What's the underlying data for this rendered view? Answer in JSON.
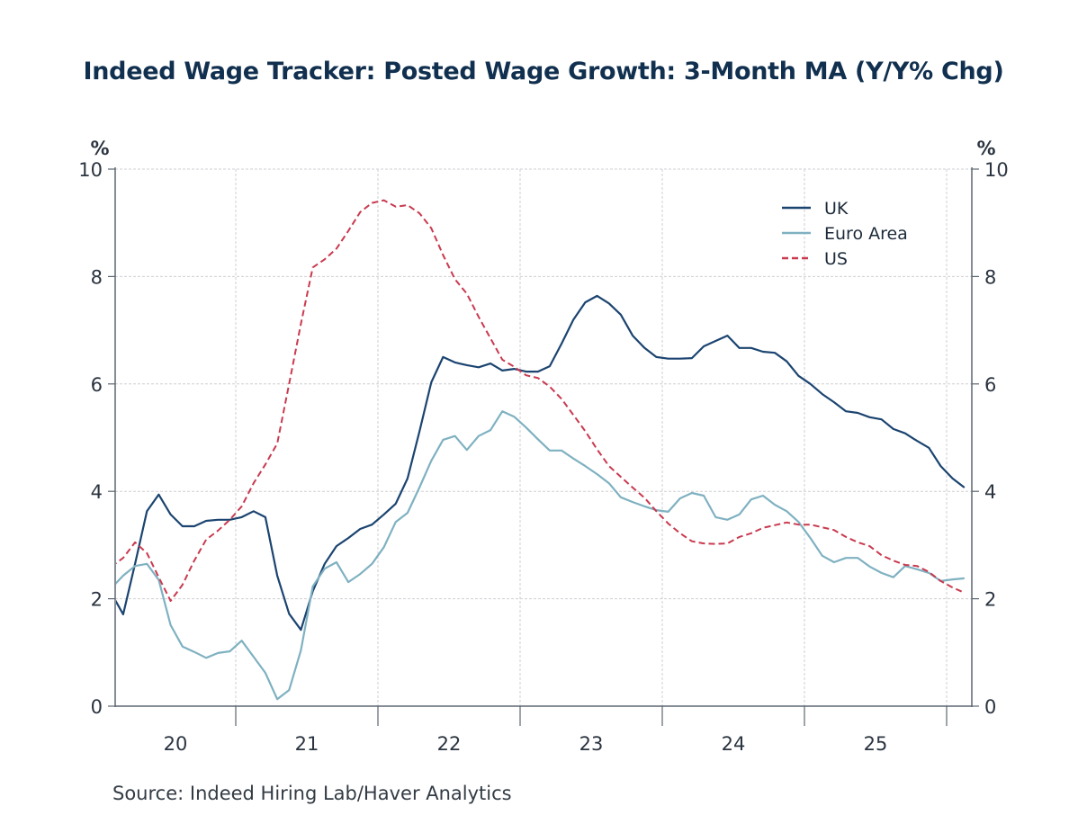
{
  "chart_data": {
    "type": "line",
    "title": "Indeed Wage Tracker: Posted Wage Growth: 3-Month MA (Y/Y% Chg)",
    "source": "Source:  Indeed Hiring Lab/Haver Analytics",
    "xlabel": "",
    "ylabel_left": "%",
    "ylabel_right": "%",
    "ylim": [
      0,
      10
    ],
    "yticks": [
      0,
      2,
      4,
      6,
      8,
      10
    ],
    "ytick_labels": [
      "0",
      "2",
      "4",
      "6",
      "8",
      "10"
    ],
    "xtick_labels": [
      "20",
      "21",
      "22",
      "23",
      "24",
      "25"
    ],
    "x_start": "2020-02",
    "x_end": "2026-02",
    "frequency": "monthly",
    "grid": true,
    "legend_position": "top-right",
    "series": [
      {
        "name": "UK",
        "color": "#1b4470",
        "style": "solid",
        "values": [
          2.1,
          1.71,
          2.65,
          3.63,
          3.94,
          3.57,
          3.35,
          3.35,
          3.45,
          3.47,
          3.47,
          3.52,
          3.63,
          3.52,
          2.43,
          1.72,
          1.42,
          2.14,
          2.65,
          2.98,
          3.13,
          3.3,
          3.38,
          3.57,
          3.77,
          4.24,
          5.11,
          6.03,
          6.5,
          6.4,
          6.35,
          6.31,
          6.38,
          6.25,
          6.28,
          6.23,
          6.23,
          6.33,
          6.75,
          7.2,
          7.52,
          7.64,
          7.5,
          7.29,
          6.9,
          6.67,
          6.5,
          6.47,
          6.47,
          6.48,
          6.7,
          6.8,
          6.9,
          6.67,
          6.67,
          6.6,
          6.58,
          6.42,
          6.15,
          6.0,
          5.81,
          5.66,
          5.49,
          5.46,
          5.38,
          5.34,
          5.16,
          5.08,
          4.94,
          4.81,
          4.47,
          4.24,
          4.07
        ]
      },
      {
        "name": "Euro Area",
        "color": "#7fb1c1",
        "style": "solid",
        "values": [
          2.2,
          2.43,
          2.61,
          2.65,
          2.35,
          1.51,
          1.11,
          1.01,
          0.9,
          0.99,
          1.02,
          1.22,
          0.92,
          0.62,
          0.13,
          0.3,
          1.04,
          2.23,
          2.56,
          2.68,
          2.31,
          2.46,
          2.65,
          2.96,
          3.43,
          3.6,
          4.07,
          4.57,
          4.96,
          5.03,
          4.77,
          5.03,
          5.14,
          5.49,
          5.39,
          5.19,
          4.97,
          4.76,
          4.76,
          4.61,
          4.47,
          4.32,
          4.15,
          3.89,
          3.8,
          3.72,
          3.65,
          3.62,
          3.87,
          3.97,
          3.92,
          3.52,
          3.47,
          3.57,
          3.85,
          3.92,
          3.75,
          3.63,
          3.43,
          3.13,
          2.8,
          2.68,
          2.76,
          2.76,
          2.6,
          2.48,
          2.4,
          2.61,
          2.55,
          2.48,
          2.33,
          2.36,
          2.38
        ]
      },
      {
        "name": "US",
        "color": "#c93a4f",
        "style": "dashed",
        "values": [
          2.6,
          2.76,
          3.05,
          2.85,
          2.4,
          1.96,
          2.26,
          2.71,
          3.1,
          3.27,
          3.47,
          3.72,
          4.15,
          4.5,
          4.89,
          6.0,
          7.12,
          8.17,
          8.32,
          8.52,
          8.85,
          9.2,
          9.37,
          9.42,
          9.3,
          9.33,
          9.18,
          8.9,
          8.4,
          7.95,
          7.68,
          7.25,
          6.85,
          6.45,
          6.32,
          6.16,
          6.11,
          5.95,
          5.72,
          5.42,
          5.12,
          4.78,
          4.47,
          4.27,
          4.07,
          3.88,
          3.63,
          3.4,
          3.22,
          3.07,
          3.03,
          3.02,
          3.03,
          3.15,
          3.22,
          3.32,
          3.37,
          3.42,
          3.38,
          3.38,
          3.33,
          3.28,
          3.15,
          3.05,
          2.98,
          2.81,
          2.71,
          2.63,
          2.61,
          2.5,
          2.33,
          2.21,
          2.11
        ]
      }
    ]
  }
}
